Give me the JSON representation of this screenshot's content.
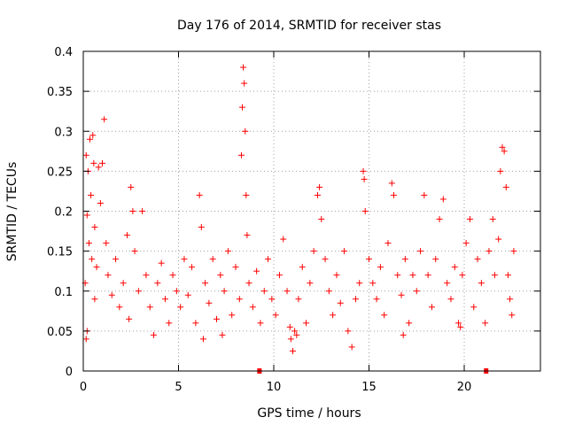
{
  "chart_data": {
    "type": "scatter",
    "title": "Day 176 of 2014, SRMTID for receiver stas",
    "xlabel": "GPS time / hours",
    "ylabel": "SRMTID / TECUs",
    "xlim": [
      0,
      24
    ],
    "ylim": [
      0,
      0.4
    ],
    "xticks": [
      0,
      5,
      10,
      15,
      20
    ],
    "xtick_labels": [
      "0",
      "5",
      "10",
      "15",
      "20"
    ],
    "yticks": [
      0,
      0.05,
      0.1,
      0.15,
      0.2,
      0.25,
      0.3,
      0.35,
      0.4
    ],
    "ytick_labels": [
      "0",
      "0.05",
      "0.1",
      "0.15",
      "0.2",
      "0.25",
      "0.3",
      "0.35",
      "0.4"
    ],
    "grid": true,
    "marker": "+",
    "color": "#ff0000",
    "gap_markers_x": [
      9.25,
      21.15
    ],
    "series": [
      {
        "name": "SRMTID",
        "points": [
          [
            0.1,
            0.11
          ],
          [
            0.15,
            0.27
          ],
          [
            0.2,
            0.195
          ],
          [
            0.25,
            0.25
          ],
          [
            0.3,
            0.16
          ],
          [
            0.35,
            0.29
          ],
          [
            0.4,
            0.22
          ],
          [
            0.45,
            0.14
          ],
          [
            0.5,
            0.295
          ],
          [
            0.55,
            0.26
          ],
          [
            0.6,
            0.18
          ],
          [
            0.7,
            0.13
          ],
          [
            0.8,
            0.255
          ],
          [
            0.9,
            0.21
          ],
          [
            1.0,
            0.26
          ],
          [
            1.1,
            0.315
          ],
          [
            1.2,
            0.16
          ],
          [
            0.2,
            0.05
          ],
          [
            0.15,
            0.04
          ],
          [
            0.6,
            0.09
          ],
          [
            1.3,
            0.12
          ],
          [
            1.5,
            0.095
          ],
          [
            1.7,
            0.14
          ],
          [
            1.9,
            0.08
          ],
          [
            2.1,
            0.11
          ],
          [
            2.3,
            0.17
          ],
          [
            2.4,
            0.065
          ],
          [
            2.5,
            0.23
          ],
          [
            2.6,
            0.2
          ],
          [
            2.7,
            0.15
          ],
          [
            2.9,
            0.1
          ],
          [
            3.1,
            0.2
          ],
          [
            3.3,
            0.12
          ],
          [
            3.5,
            0.08
          ],
          [
            3.7,
            0.045
          ],
          [
            3.9,
            0.11
          ],
          [
            4.1,
            0.135
          ],
          [
            4.3,
            0.09
          ],
          [
            4.5,
            0.06
          ],
          [
            4.7,
            0.12
          ],
          [
            4.9,
            0.1
          ],
          [
            5.1,
            0.08
          ],
          [
            5.3,
            0.14
          ],
          [
            5.5,
            0.095
          ],
          [
            5.7,
            0.13
          ],
          [
            5.9,
            0.06
          ],
          [
            6.1,
            0.22
          ],
          [
            6.2,
            0.18
          ],
          [
            6.4,
            0.11
          ],
          [
            6.6,
            0.085
          ],
          [
            6.8,
            0.14
          ],
          [
            7.0,
            0.065
          ],
          [
            7.2,
            0.12
          ],
          [
            7.4,
            0.1
          ],
          [
            7.6,
            0.15
          ],
          [
            7.8,
            0.07
          ],
          [
            8.0,
            0.13
          ],
          [
            8.2,
            0.09
          ],
          [
            8.3,
            0.27
          ],
          [
            8.35,
            0.33
          ],
          [
            8.4,
            0.38
          ],
          [
            8.45,
            0.36
          ],
          [
            8.5,
            0.3
          ],
          [
            8.55,
            0.22
          ],
          [
            8.6,
            0.17
          ],
          [
            8.7,
            0.11
          ],
          [
            8.9,
            0.08
          ],
          [
            9.1,
            0.125
          ],
          [
            9.3,
            0.06
          ],
          [
            9.5,
            0.1
          ],
          [
            9.7,
            0.14
          ],
          [
            9.9,
            0.09
          ],
          [
            10.1,
            0.07
          ],
          [
            10.3,
            0.12
          ],
          [
            10.5,
            0.165
          ],
          [
            10.7,
            0.1
          ],
          [
            10.9,
            0.04
          ],
          [
            11.0,
            0.025
          ],
          [
            11.1,
            0.05
          ],
          [
            11.3,
            0.09
          ],
          [
            11.5,
            0.13
          ],
          [
            11.7,
            0.06
          ],
          [
            11.9,
            0.11
          ],
          [
            12.1,
            0.15
          ],
          [
            12.3,
            0.22
          ],
          [
            12.4,
            0.23
          ],
          [
            12.5,
            0.19
          ],
          [
            12.7,
            0.14
          ],
          [
            12.9,
            0.1
          ],
          [
            13.1,
            0.07
          ],
          [
            13.3,
            0.12
          ],
          [
            13.5,
            0.085
          ],
          [
            13.7,
            0.15
          ],
          [
            13.9,
            0.05
          ],
          [
            14.1,
            0.03
          ],
          [
            14.3,
            0.09
          ],
          [
            14.5,
            0.11
          ],
          [
            14.7,
            0.25
          ],
          [
            14.75,
            0.24
          ],
          [
            14.8,
            0.2
          ],
          [
            15.0,
            0.14
          ],
          [
            15.2,
            0.11
          ],
          [
            15.4,
            0.09
          ],
          [
            15.6,
            0.13
          ],
          [
            15.8,
            0.07
          ],
          [
            16.0,
            0.16
          ],
          [
            16.2,
            0.235
          ],
          [
            16.3,
            0.22
          ],
          [
            16.5,
            0.12
          ],
          [
            16.7,
            0.095
          ],
          [
            16.9,
            0.14
          ],
          [
            17.1,
            0.06
          ],
          [
            17.3,
            0.12
          ],
          [
            17.5,
            0.1
          ],
          [
            17.7,
            0.15
          ],
          [
            17.9,
            0.22
          ],
          [
            18.1,
            0.12
          ],
          [
            18.3,
            0.08
          ],
          [
            18.5,
            0.14
          ],
          [
            18.7,
            0.19
          ],
          [
            18.9,
            0.215
          ],
          [
            19.1,
            0.11
          ],
          [
            19.3,
            0.09
          ],
          [
            19.5,
            0.13
          ],
          [
            19.7,
            0.06
          ],
          [
            19.9,
            0.12
          ],
          [
            20.1,
            0.16
          ],
          [
            20.3,
            0.19
          ],
          [
            20.5,
            0.08
          ],
          [
            20.7,
            0.14
          ],
          [
            20.9,
            0.11
          ],
          [
            21.1,
            0.06
          ],
          [
            21.3,
            0.15
          ],
          [
            21.5,
            0.19
          ],
          [
            21.6,
            0.12
          ],
          [
            21.8,
            0.165
          ],
          [
            21.9,
            0.25
          ],
          [
            22.0,
            0.28
          ],
          [
            22.1,
            0.275
          ],
          [
            22.2,
            0.23
          ],
          [
            22.3,
            0.12
          ],
          [
            22.4,
            0.09
          ],
          [
            22.5,
            0.07
          ],
          [
            22.6,
            0.15
          ],
          [
            11.2,
            0.045
          ],
          [
            10.85,
            0.055
          ],
          [
            6.3,
            0.04
          ],
          [
            7.3,
            0.045
          ],
          [
            16.8,
            0.045
          ],
          [
            19.8,
            0.055
          ]
        ]
      }
    ]
  }
}
